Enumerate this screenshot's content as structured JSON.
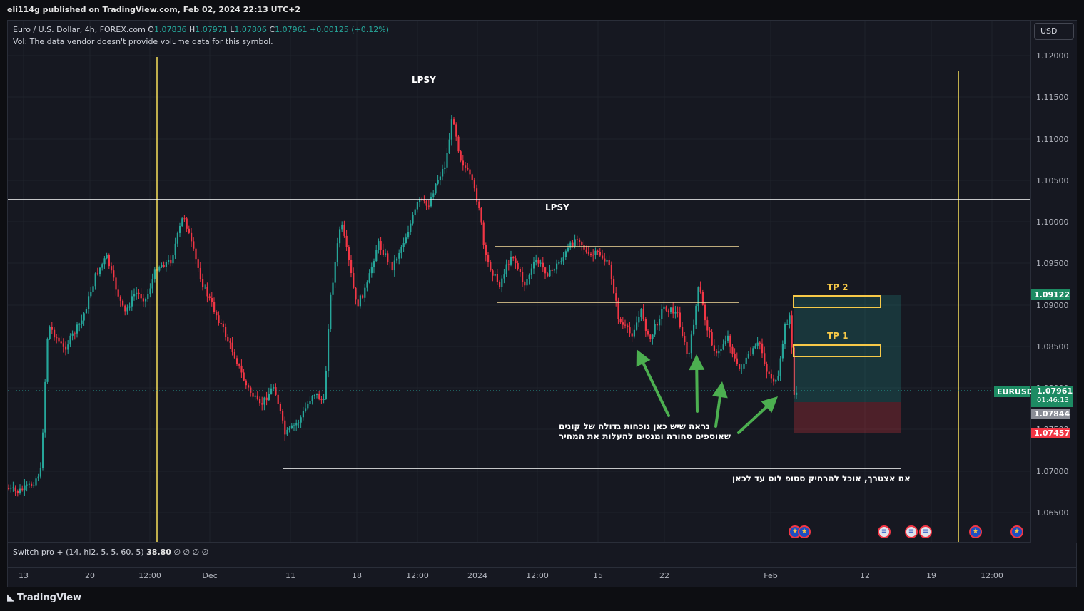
{
  "publish_info": "eli114g published on TradingView.com, Feb 02, 2024 22:13 UTC+2",
  "legend": {
    "symbol": "Euro / U.S. Dollar, 4h, FOREX.com",
    "o_label": "O",
    "o": "1.07836",
    "h_label": "H",
    "h": "1.07971",
    "l_label": "L",
    "l": "1.07806",
    "c_label": "C",
    "c": "1.07961",
    "change": "+0.00125 (+0.12%)",
    "vol": "Vol: The data vendor doesn't provide volume data for this symbol."
  },
  "currency_button": "USD",
  "indicator": {
    "name": "Switch pro + (14, hl2, 5, 5, 60, 5)",
    "value": "38.80",
    "rest": "∅ ∅ ∅ ∅"
  },
  "y_axis": [
    "1.12000",
    "1.11500",
    "1.11000",
    "1.10500",
    "1.10000",
    "1.09500",
    "1.09000",
    "1.08500",
    "1.08000",
    "1.07500",
    "1.07000",
    "1.06500"
  ],
  "x_axis": [
    "13",
    "20",
    "12:00",
    "Dec",
    "11",
    "18",
    "12:00",
    "2024",
    "12:00",
    "15",
    "22",
    "Feb",
    "12",
    "19",
    "12:00"
  ],
  "price_tags": {
    "tp2": "1.09122",
    "symbol": "EURUSD",
    "last": "1.07961",
    "countdown": "01:46:13",
    "entry": "1.07844",
    "stop": "1.07457"
  },
  "annotations": {
    "lpsy_1": "LPSY",
    "lpsy_2": "LPSY",
    "tp2": "TP 2",
    "tp1": "TP 1",
    "buyers_line1": "נראה שיש כאן נוכחות גדולה של קונים",
    "buyers_line2": "שאוספים סחורה ומנסים להעלות את המחיר",
    "stop_note": "אם אצטרך, אוכל להרחיק סטופ לוס עד לכאן"
  },
  "brand": "TradingView",
  "colors": {
    "up": "#26a69a",
    "down": "#f23645",
    "vline": "#f7e05a",
    "arrow": "#4caf50"
  }
}
